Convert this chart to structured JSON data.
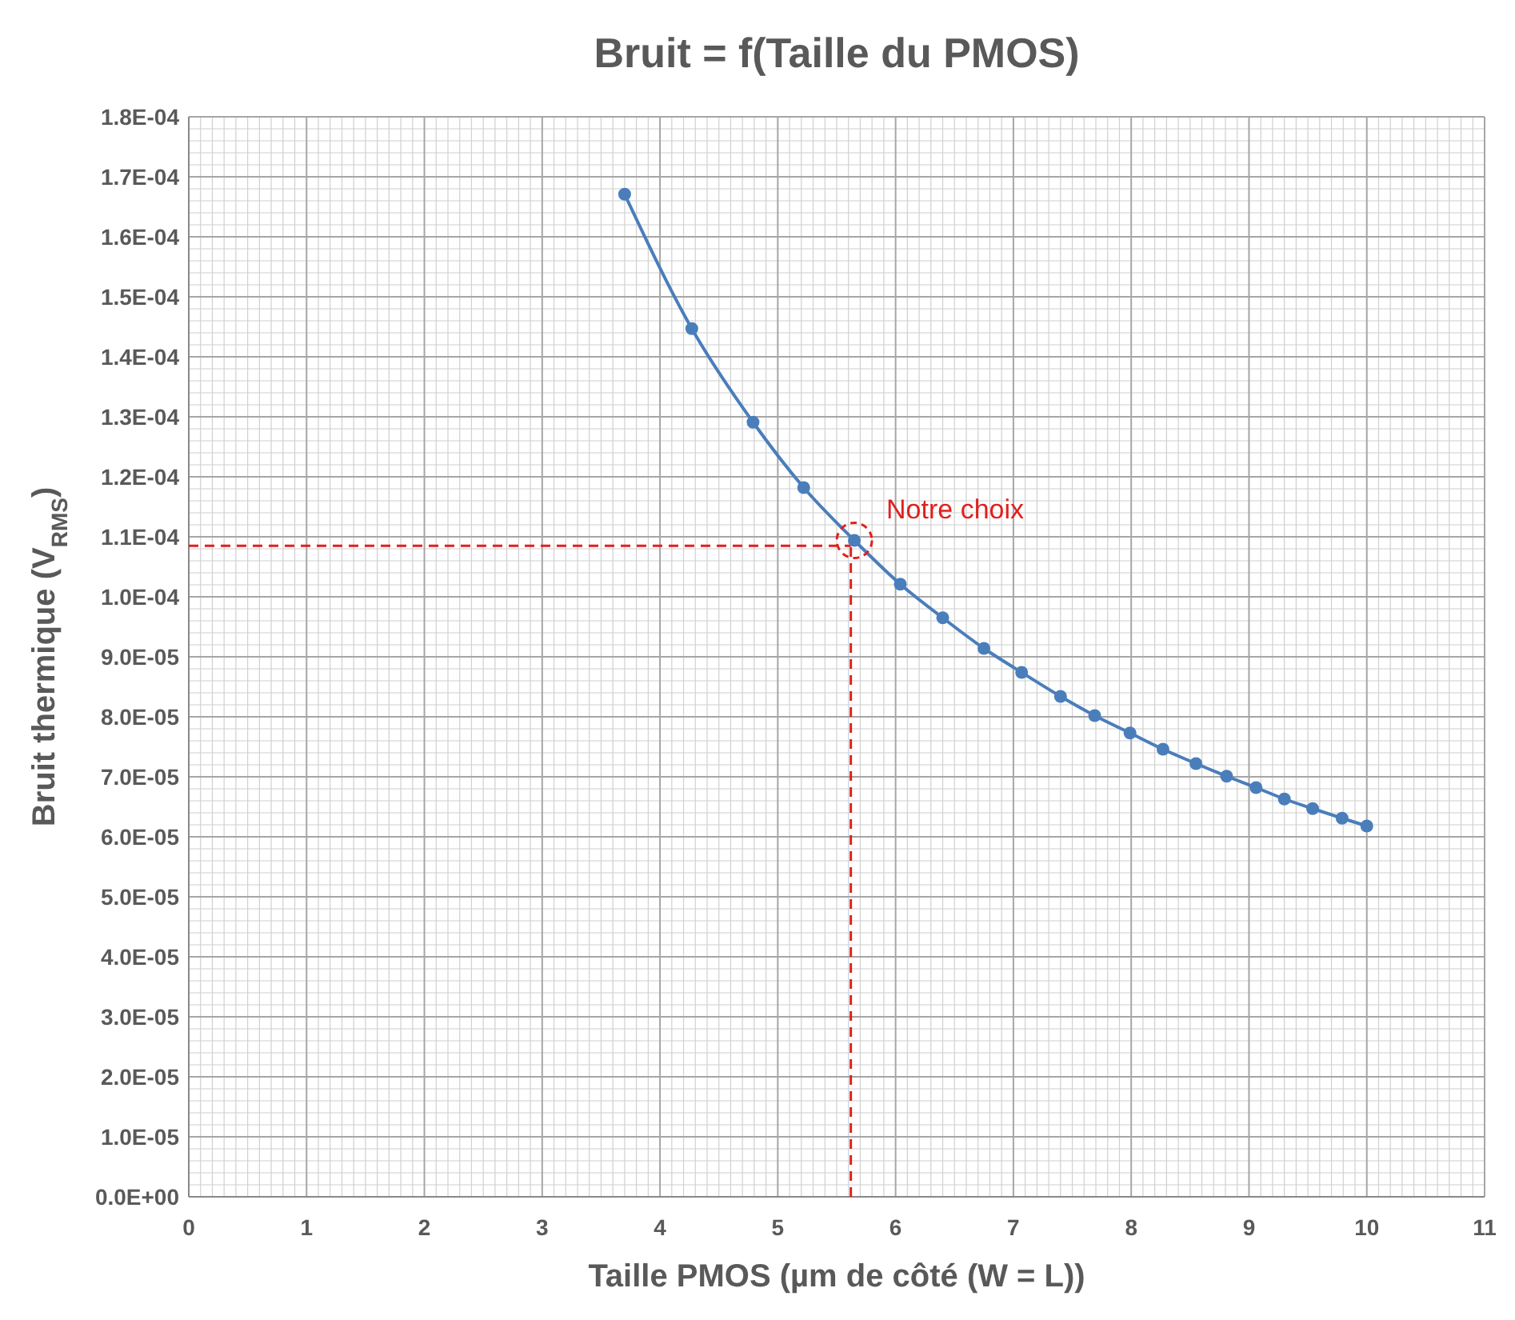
{
  "chart_data": {
    "type": "line",
    "title": "Bruit = f(Taille du PMOS)",
    "xlabel": "Taille PMOS (µm de côté (W = L))",
    "ylabel": "Bruit thermique (V$_{RMS}$)",
    "series": [
      {
        "color": "#4a7ebb",
        "x": [
          3.7,
          4.27,
          4.79,
          5.22,
          5.65,
          6.04,
          6.4,
          6.75,
          7.07,
          7.4,
          7.69,
          7.99,
          8.27,
          8.55,
          8.81,
          9.06,
          9.3,
          9.54,
          9.79,
          10.0
        ],
        "values": [
          0.0001671,
          0.0001447,
          0.0001291,
          0.0001182,
          0.0001094,
          0.0001021,
          9.65e-05,
          9.14e-05,
          8.74e-05,
          8.34e-05,
          8.02e-05,
          7.73e-05,
          7.46e-05,
          7.22e-05,
          7.01e-05,
          6.82e-05,
          6.63e-05,
          6.47e-05,
          6.31e-05,
          6.18e-05
        ]
      }
    ],
    "marker": "circle",
    "line_style": "solid",
    "grid": true,
    "xlim": [
      0,
      11
    ],
    "xticks": [
      0,
      1,
      2,
      3,
      4,
      5,
      6,
      7,
      8,
      9,
      10,
      11
    ],
    "ylim": [
      0,
      0.00018
    ],
    "yticks": [
      {
        "value": 0,
        "label": "0.0E+00"
      },
      {
        "value": 1e-05,
        "label": "1.0E-05"
      },
      {
        "value": 2e-05,
        "label": "2.0E-05"
      },
      {
        "value": 3e-05,
        "label": "3.0E-05"
      },
      {
        "value": 4e-05,
        "label": "4.0E-05"
      },
      {
        "value": 5e-05,
        "label": "5.0E-05"
      },
      {
        "value": 6e-05,
        "label": "6.0E-05"
      },
      {
        "value": 7e-05,
        "label": "7.0E-05"
      },
      {
        "value": 8e-05,
        "label": "8.0E-05"
      },
      {
        "value": 9e-05,
        "label": "9.0E-05"
      },
      {
        "value": 0.0001,
        "label": "1.0E-04"
      },
      {
        "value": 0.00011,
        "label": "1.1E-04"
      },
      {
        "value": 0.00012,
        "label": "1.2E-04"
      },
      {
        "value": 0.00013,
        "label": "1.3E-04"
      },
      {
        "value": 0.00014,
        "label": "1.4E-04"
      },
      {
        "value": 0.00015,
        "label": "1.5E-04"
      },
      {
        "value": 0.00016,
        "label": "1.6E-04"
      },
      {
        "value": 0.00017,
        "label": "1.7E-04"
      },
      {
        "value": 0.00018,
        "label": "1.8E-04"
      }
    ],
    "ref_lines": [
      {
        "axis": "y",
        "value": 0.0001085,
        "color": "#e0201c",
        "line_style": "dashed"
      },
      {
        "axis": "x",
        "value": 5.62,
        "color": "#e0201c",
        "line_style": "dashed"
      }
    ],
    "annotations": [
      {
        "text": "Notre choix",
        "x": 5.65,
        "y": 0.0001094
      }
    ]
  }
}
